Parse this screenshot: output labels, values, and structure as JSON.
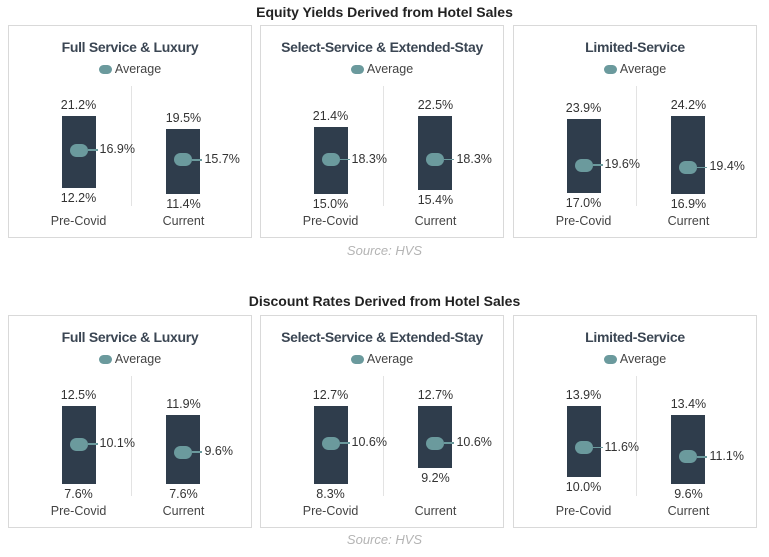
{
  "sections": [
    {
      "title": "Equity Yields Derived from Hotel Sales",
      "source": "Source: HVS"
    },
    {
      "title": "Discount Rates Derived from Hotel Sales",
      "source": "Source: HVS"
    }
  ],
  "colors": {
    "bar": "#2f3d4c",
    "average_marker": "#6b9a9d",
    "source_text": "#b4b4b4"
  },
  "chart_data": [
    {
      "type": "floating-bar",
      "title": "Full Service & Luxury",
      "legend": [
        "Average"
      ],
      "categories": [
        "Pre-Covid",
        "Current"
      ],
      "high": [
        21.2,
        19.5
      ],
      "low": [
        12.2,
        11.4
      ],
      "average": [
        16.9,
        15.7
      ],
      "labels": {
        "high": [
          "21.2%",
          "19.5%"
        ],
        "low": [
          "12.2%",
          "11.4%"
        ],
        "average": [
          "16.9%",
          "15.7%"
        ]
      },
      "unit": "%"
    },
    {
      "type": "floating-bar",
      "title": "Select-Service & Extended-Stay",
      "legend": [
        "Average"
      ],
      "categories": [
        "Pre-Covid",
        "Current"
      ],
      "high": [
        21.4,
        22.5
      ],
      "low": [
        15.0,
        15.4
      ],
      "average": [
        18.3,
        18.3
      ],
      "labels": {
        "high": [
          "21.4%",
          "22.5%"
        ],
        "low": [
          "15.0%",
          "15.4%"
        ],
        "average": [
          "18.3%",
          "18.3%"
        ]
      },
      "unit": "%"
    },
    {
      "type": "floating-bar",
      "title": "Limited-Service",
      "legend": [
        "Average"
      ],
      "categories": [
        "Pre-Covid",
        "Current"
      ],
      "high": [
        23.9,
        24.2
      ],
      "low": [
        17.0,
        16.9
      ],
      "average": [
        19.6,
        19.4
      ],
      "labels": {
        "high": [
          "23.9%",
          "24.2%"
        ],
        "low": [
          "17.0%",
          "16.9%"
        ],
        "average": [
          "19.6%",
          "19.4%"
        ]
      },
      "unit": "%"
    },
    {
      "type": "floating-bar",
      "title": "Full Service & Luxury",
      "legend": [
        "Average"
      ],
      "categories": [
        "Pre-Covid",
        "Current"
      ],
      "high": [
        12.5,
        11.9
      ],
      "low": [
        7.6,
        7.6
      ],
      "average": [
        10.1,
        9.6
      ],
      "labels": {
        "high": [
          "12.5%",
          "11.9%"
        ],
        "low": [
          "7.6%",
          "7.6%"
        ],
        "average": [
          "10.1%",
          "9.6%"
        ]
      },
      "unit": "%"
    },
    {
      "type": "floating-bar",
      "title": "Select-Service & Extended-Stay",
      "legend": [
        "Average"
      ],
      "categories": [
        "Pre-Covid",
        "Current"
      ],
      "high": [
        12.7,
        12.7
      ],
      "low": [
        8.3,
        9.2
      ],
      "average": [
        10.6,
        10.6
      ],
      "labels": {
        "high": [
          "12.7%",
          "12.7%"
        ],
        "low": [
          "8.3%",
          "9.2%"
        ],
        "average": [
          "10.6%",
          "10.6%"
        ]
      },
      "unit": "%"
    },
    {
      "type": "floating-bar",
      "title": "Limited-Service",
      "legend": [
        "Average"
      ],
      "categories": [
        "Pre-Covid",
        "Current"
      ],
      "high": [
        13.9,
        13.4
      ],
      "low": [
        10.0,
        9.6
      ],
      "average": [
        11.6,
        11.1
      ],
      "labels": {
        "high": [
          "13.9%",
          "13.4%"
        ],
        "low": [
          "10.0%",
          "9.6%"
        ],
        "average": [
          "11.6%",
          "11.1%"
        ]
      },
      "unit": "%"
    }
  ]
}
